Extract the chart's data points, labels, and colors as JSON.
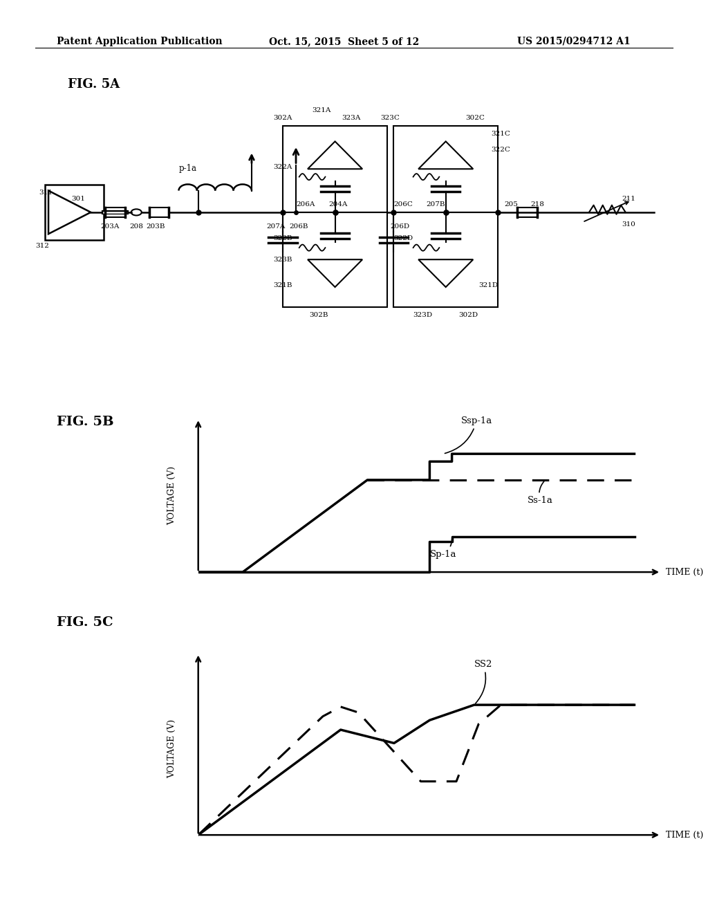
{
  "bg_color": "#ffffff",
  "header_left": "Patent Application Publication",
  "header_center": "Oct. 15, 2015  Sheet 5 of 12",
  "header_right": "US 2015/0294712 A1",
  "fig5a_label": "FIG. 5A",
  "fig5b_label": "FIG. 5B",
  "fig5c_label": "FIG. 5C"
}
